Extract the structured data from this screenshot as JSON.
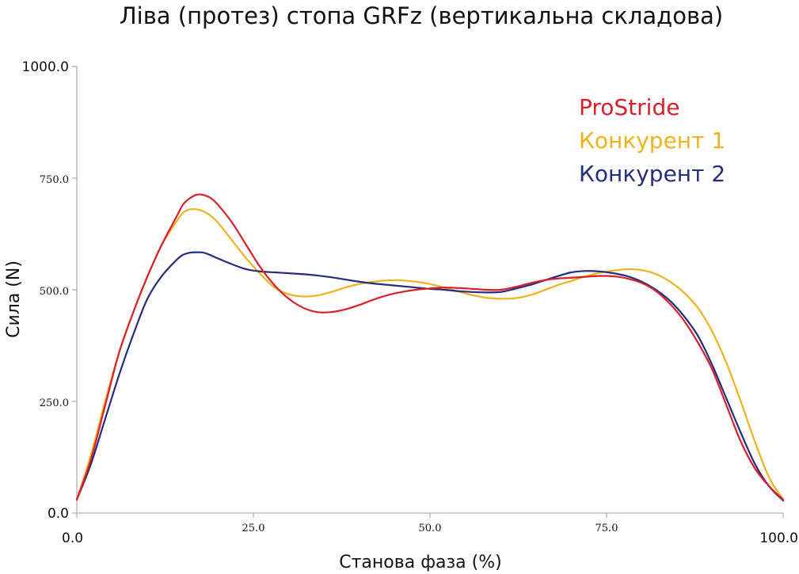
{
  "chart_data": {
    "type": "line",
    "title": "Ліва (протез) стопа GRFz (вертикальна складова)",
    "xlabel": "Станова фаза (%)",
    "ylabel": "Сила (N)",
    "xlim": [
      0,
      100
    ],
    "ylim": [
      0,
      1000
    ],
    "xticks": [
      "0.0",
      "25.0",
      "50.0",
      "75.0",
      "100.0"
    ],
    "yticks": [
      "0.0",
      "250.0",
      "500.0",
      "750.0",
      "1000.0"
    ],
    "xtick_values": [
      0,
      25,
      50,
      75,
      100
    ],
    "ytick_values": [
      0,
      250,
      500,
      750,
      1000
    ],
    "grid": false,
    "legend_position": "top-right",
    "series": [
      {
        "name": "ProStride",
        "color": "#d8202a",
        "x": [
          0,
          2,
          4,
          6,
          8,
          10,
          12,
          14,
          15,
          16,
          17,
          18,
          19,
          20,
          22,
          24,
          26,
          28,
          30,
          32,
          34,
          36,
          38,
          40,
          42,
          44,
          46,
          48,
          50,
          52,
          54,
          56,
          58,
          60,
          62,
          64,
          66,
          68,
          70,
          72,
          74,
          76,
          78,
          80,
          82,
          84,
          86,
          88,
          90,
          92,
          94,
          96,
          98,
          100
        ],
        "y": [
          30,
          120,
          240,
          360,
          450,
          530,
          600,
          660,
          690,
          705,
          713,
          712,
          705,
          690,
          650,
          600,
          550,
          510,
          480,
          460,
          450,
          450,
          456,
          466,
          478,
          488,
          495,
          500,
          503,
          505,
          504,
          502,
          500,
          500,
          506,
          514,
          521,
          525,
          527,
          529,
          531,
          530,
          525,
          515,
          497,
          468,
          430,
          380,
          320,
          240,
          160,
          100,
          60,
          30
        ]
      },
      {
        "name": "Конкурент 1",
        "color": "#f0b21e",
        "x": [
          0,
          2,
          4,
          6,
          8,
          10,
          12,
          14,
          15,
          16,
          17,
          18,
          19,
          20,
          22,
          24,
          26,
          28,
          30,
          32,
          34,
          36,
          38,
          40,
          42,
          44,
          46,
          48,
          50,
          52,
          54,
          56,
          58,
          60,
          62,
          64,
          66,
          68,
          70,
          72,
          74,
          76,
          78,
          80,
          82,
          84,
          86,
          88,
          90,
          92,
          94,
          96,
          98,
          100
        ],
        "y": [
          30,
          130,
          250,
          360,
          450,
          530,
          600,
          650,
          672,
          680,
          680,
          675,
          665,
          650,
          610,
          570,
          535,
          505,
          490,
          485,
          487,
          495,
          505,
          513,
          518,
          521,
          521,
          518,
          513,
          505,
          496,
          488,
          482,
          480,
          481,
          487,
          498,
          510,
          520,
          530,
          538,
          543,
          546,
          544,
          535,
          518,
          493,
          458,
          405,
          335,
          250,
          160,
          80,
          30
        ]
      },
      {
        "name": "Конкурент 2",
        "color": "#262c7e",
        "x": [
          0,
          2,
          4,
          6,
          8,
          10,
          12,
          14,
          15,
          16,
          17,
          18,
          19,
          20,
          22,
          24,
          26,
          28,
          30,
          32,
          34,
          36,
          38,
          40,
          42,
          44,
          46,
          48,
          50,
          52,
          54,
          56,
          58,
          60,
          62,
          64,
          66,
          68,
          70,
          72,
          74,
          76,
          78,
          80,
          82,
          84,
          86,
          88,
          90,
          92,
          94,
          96,
          98,
          100
        ],
        "y": [
          30,
          110,
          210,
          310,
          400,
          480,
          530,
          565,
          578,
          583,
          584,
          583,
          577,
          570,
          557,
          546,
          541,
          539,
          537,
          535,
          532,
          528,
          523,
          518,
          514,
          511,
          508,
          505,
          502,
          500,
          497,
          495,
          494,
          495,
          502,
          510,
          520,
          530,
          539,
          542,
          541,
          537,
          530,
          518,
          500,
          475,
          440,
          395,
          330,
          255,
          180,
          110,
          60,
          28
        ]
      }
    ]
  }
}
